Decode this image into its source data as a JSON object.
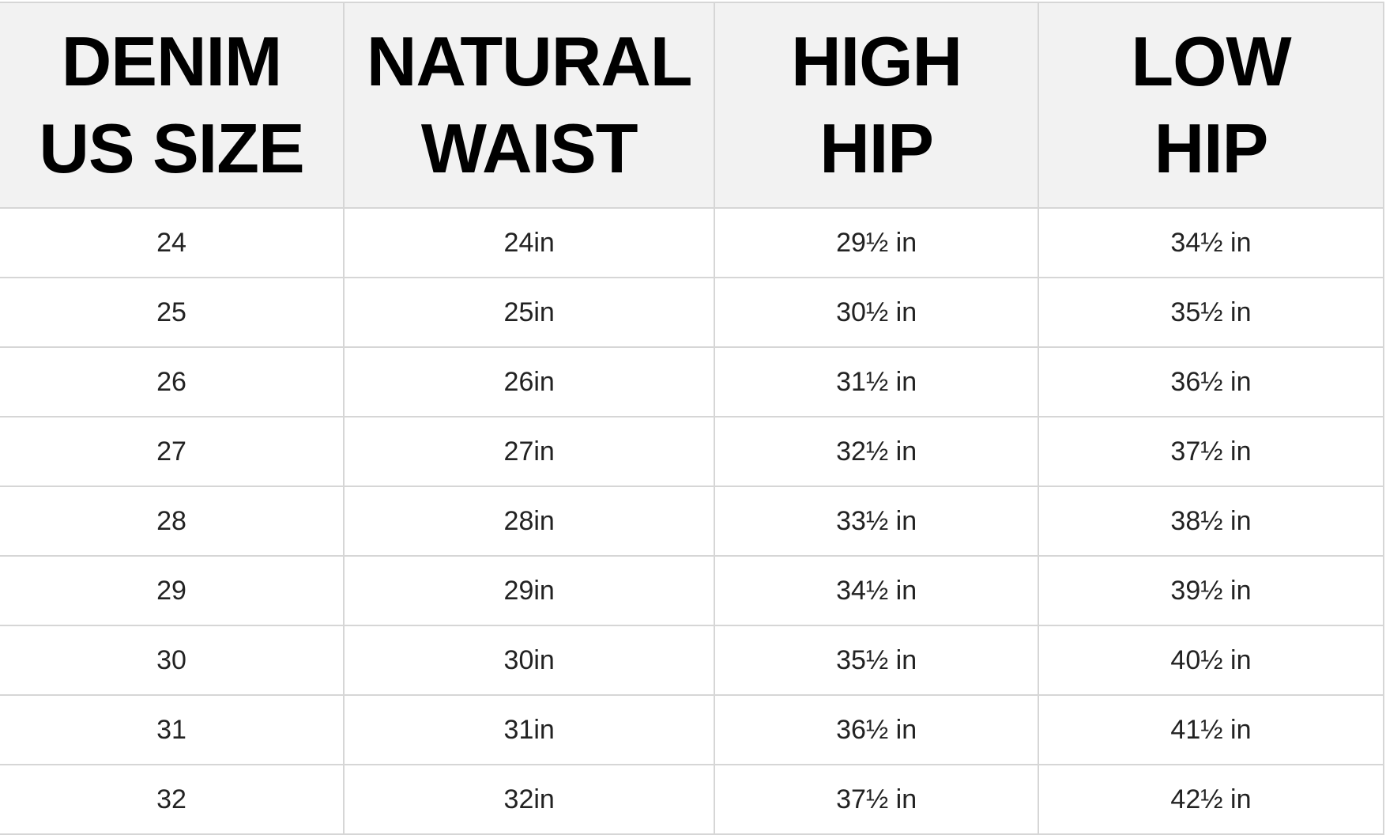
{
  "table": {
    "headers": [
      [
        "DENIM",
        "US SIZE"
      ],
      [
        "NATURAL",
        "WAIST"
      ],
      [
        "HIGH",
        "HIP"
      ],
      [
        "LOW",
        "HIP"
      ]
    ],
    "rows": [
      [
        "24",
        "24in",
        "29½ in",
        "34½ in"
      ],
      [
        "25",
        "25in",
        "30½ in",
        "35½ in"
      ],
      [
        "26",
        "26in",
        "31½ in",
        "36½ in"
      ],
      [
        "27",
        "27in",
        "32½ in",
        "37½ in"
      ],
      [
        "28",
        "28in",
        "33½ in",
        "38½ in"
      ],
      [
        "29",
        "29in",
        "34½ in",
        "39½ in"
      ],
      [
        "30",
        "30in",
        "35½ in",
        "40½ in"
      ],
      [
        "31",
        "31in",
        "36½ in",
        "41½ in"
      ],
      [
        "32",
        "32in",
        "37½ in",
        "42½ in"
      ]
    ]
  },
  "colors": {
    "header_bg": "#f2f2f2",
    "border": "#d6d6d6",
    "text": "#222222"
  }
}
